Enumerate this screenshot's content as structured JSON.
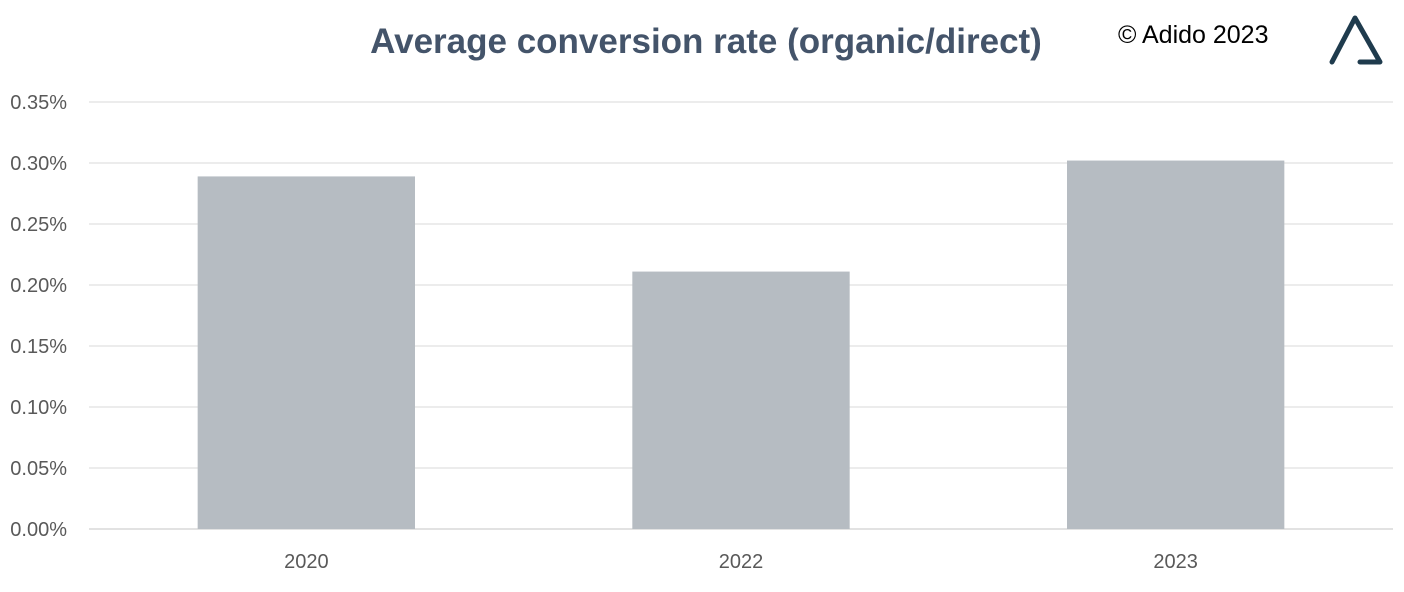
{
  "header": {
    "copyright": "© Adido 2023"
  },
  "colors": {
    "bar": "#b6bcc2",
    "grid": "#d9d9d9",
    "axis": "#d9d9d9",
    "tick_text": "#595959",
    "title": "#44546a",
    "logo": "#1f3b4d"
  },
  "logo": {
    "icon": "triangle-logo-icon"
  },
  "chart_data": {
    "type": "bar",
    "title": "Average conversion rate (organic/direct)",
    "categories": [
      "2020",
      "2022",
      "2023"
    ],
    "values": [
      0.289,
      0.211,
      0.302
    ],
    "ylim": [
      0,
      0.35
    ],
    "yticks": [
      0,
      0.05,
      0.1,
      0.15,
      0.2,
      0.25,
      0.3,
      0.35
    ],
    "ytick_labels": [
      "0.00%",
      "0.05%",
      "0.10%",
      "0.15%",
      "0.20%",
      "0.25%",
      "0.30%",
      "0.35%"
    ],
    "xlabel": "",
    "ylabel": "",
    "grid": true,
    "legend": "none"
  }
}
